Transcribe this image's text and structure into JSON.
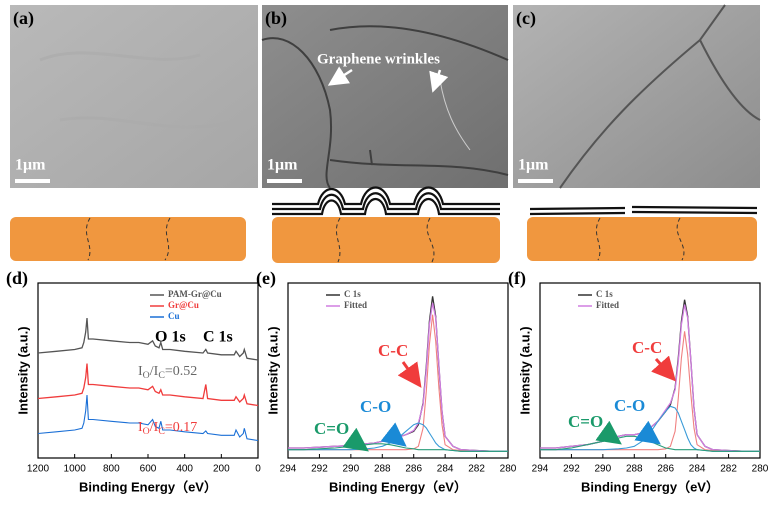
{
  "images": [
    {
      "panel": "(a)",
      "scale_bar": "1μm"
    },
    {
      "panel": "(b)",
      "scale_bar": "1μm",
      "annotation": "Graphene wrinkles"
    },
    {
      "panel": "(c)",
      "scale_bar": "1μm"
    }
  ],
  "chart_data": [
    {
      "type": "line",
      "panel": "(d)",
      "xlabel": "Binding Energy（eV）",
      "ylabel": "Intensity (a.u.)",
      "x": [
        1200,
        1100,
        1000,
        960,
        950,
        940,
        933,
        925,
        900,
        800,
        700,
        650,
        600,
        575,
        560,
        540,
        530,
        520,
        480,
        400,
        300,
        285,
        275,
        200,
        130,
        120,
        100,
        80,
        75,
        60,
        0
      ],
      "xlim": [
        1200,
        0
      ],
      "xticks": [
        1200,
        1000,
        800,
        600,
        400,
        200,
        0
      ],
      "ylim": [
        0,
        1
      ],
      "series": [
        {
          "name": "PAM-Gr@Cu",
          "color": "#555555",
          "values": [
            0.6,
            0.61,
            0.62,
            0.63,
            0.66,
            0.72,
            0.8,
            0.68,
            0.68,
            0.67,
            0.66,
            0.66,
            0.65,
            0.67,
            0.64,
            0.63,
            0.66,
            0.62,
            0.62,
            0.61,
            0.6,
            0.62,
            0.6,
            0.59,
            0.59,
            0.61,
            0.58,
            0.6,
            0.62,
            0.57,
            0.56
          ]
        },
        {
          "name": "Gr@Cu",
          "color": "#f03c3c",
          "values": [
            0.34,
            0.35,
            0.36,
            0.37,
            0.4,
            0.46,
            0.54,
            0.42,
            0.42,
            0.41,
            0.4,
            0.4,
            0.39,
            0.41,
            0.38,
            0.37,
            0.39,
            0.36,
            0.36,
            0.35,
            0.34,
            0.42,
            0.34,
            0.33,
            0.33,
            0.35,
            0.32,
            0.34,
            0.36,
            0.31,
            0.3
          ]
        },
        {
          "name": "Cu",
          "color": "#1a6fd6",
          "values": [
            0.14,
            0.15,
            0.16,
            0.17,
            0.2,
            0.27,
            0.36,
            0.22,
            0.22,
            0.21,
            0.2,
            0.2,
            0.19,
            0.22,
            0.18,
            0.17,
            0.21,
            0.16,
            0.16,
            0.15,
            0.14,
            0.155,
            0.14,
            0.13,
            0.13,
            0.16,
            0.12,
            0.14,
            0.17,
            0.11,
            0.1
          ]
        }
      ],
      "annotations": [
        {
          "text": "O 1s",
          "color": "#000000"
        },
        {
          "text": "C 1s",
          "color": "#000000"
        },
        {
          "parts": [
            "I",
            "O",
            "/I",
            "C",
            "=0.52"
          ],
          "color": "#666666"
        },
        {
          "parts": [
            "I",
            "O",
            "/I",
            "C",
            "=0.17"
          ],
          "color": "#f03c3c"
        }
      ]
    },
    {
      "type": "line",
      "panel": "(e)",
      "xlabel": "Binding Energy（eV）",
      "ylabel": "Intensity (a.u.)",
      "x": [
        294,
        293,
        292,
        291,
        290,
        289,
        288.5,
        288,
        287.5,
        287,
        286.5,
        286,
        285.7,
        285.4,
        285.2,
        285,
        284.8,
        284.6,
        284.4,
        284.2,
        284,
        283.5,
        283,
        282,
        281,
        280
      ],
      "xlim": [
        294,
        280
      ],
      "xticks": [
        294,
        292,
        290,
        288,
        286,
        284,
        282,
        280
      ],
      "ylim": [
        0,
        1.05
      ],
      "series": [
        {
          "name": "C 1s",
          "color": "#333333",
          "values": [
            0.06,
            0.06,
            0.065,
            0.07,
            0.075,
            0.085,
            0.09,
            0.1,
            0.11,
            0.125,
            0.14,
            0.16,
            0.2,
            0.33,
            0.55,
            0.82,
            0.97,
            0.85,
            0.55,
            0.28,
            0.13,
            0.07,
            0.05,
            0.045,
            0.04,
            0.04
          ]
        },
        {
          "name": "Fitted",
          "color": "#d07de0",
          "values": [
            0.06,
            0.06,
            0.065,
            0.07,
            0.075,
            0.085,
            0.09,
            0.1,
            0.11,
            0.125,
            0.14,
            0.165,
            0.21,
            0.32,
            0.53,
            0.8,
            0.93,
            0.84,
            0.56,
            0.28,
            0.13,
            0.07,
            0.05,
            0.045,
            0.04,
            0.04
          ]
        },
        {
          "color": "#f08080",
          "values": [
            0.05,
            0.05,
            0.05,
            0.05,
            0.05,
            0.05,
            0.05,
            0.05,
            0.05,
            0.05,
            0.05,
            0.055,
            0.07,
            0.18,
            0.4,
            0.68,
            0.86,
            0.7,
            0.42,
            0.2,
            0.08,
            0.05,
            0.045,
            0.04,
            0.04,
            0.04
          ]
        },
        {
          "color": "#3a9bd8",
          "values": [
            0.05,
            0.05,
            0.05,
            0.05,
            0.05,
            0.055,
            0.06,
            0.07,
            0.09,
            0.12,
            0.16,
            0.2,
            0.21,
            0.2,
            0.18,
            0.15,
            0.12,
            0.09,
            0.07,
            0.06,
            0.05,
            0.045,
            0.04,
            0.04,
            0.04,
            0.04
          ]
        },
        {
          "color": "#2a9d7a",
          "values": [
            0.05,
            0.05,
            0.055,
            0.06,
            0.07,
            0.08,
            0.085,
            0.085,
            0.08,
            0.07,
            0.06,
            0.055,
            0.05,
            0.05,
            0.05,
            0.05,
            0.05,
            0.05,
            0.05,
            0.05,
            0.05,
            0.045,
            0.04,
            0.04,
            0.04,
            0.04
          ]
        }
      ],
      "annotations": [
        {
          "text": "C-C",
          "color": "#f03c3c"
        },
        {
          "text": "C-O",
          "color": "#1a8ad6"
        },
        {
          "text": "C=O",
          "color": "#1a9a6a"
        }
      ]
    },
    {
      "type": "line",
      "panel": "(f)",
      "xlabel": "Binding Energy（eV）",
      "ylabel": "Intensity (a.u.)",
      "x": [
        294,
        293,
        292,
        291,
        290,
        289,
        288.5,
        288,
        287.5,
        287,
        286.5,
        286,
        285.7,
        285.4,
        285.2,
        285,
        284.8,
        284.6,
        284.4,
        284.2,
        284,
        283.5,
        283,
        282,
        281,
        280
      ],
      "xlim": [
        294,
        280
      ],
      "xticks": [
        294,
        292,
        290,
        288,
        286,
        284,
        282,
        280
      ],
      "ylim": [
        0,
        1.05
      ],
      "series": [
        {
          "name": "C 1s",
          "color": "#333333",
          "values": [
            0.06,
            0.06,
            0.07,
            0.08,
            0.1,
            0.13,
            0.14,
            0.14,
            0.15,
            0.18,
            0.22,
            0.28,
            0.32,
            0.42,
            0.6,
            0.82,
            0.95,
            0.85,
            0.58,
            0.3,
            0.14,
            0.07,
            0.05,
            0.045,
            0.04,
            0.04
          ]
        },
        {
          "name": "Fitted",
          "color": "#d07de0",
          "values": [
            0.06,
            0.06,
            0.07,
            0.08,
            0.1,
            0.13,
            0.14,
            0.14,
            0.15,
            0.18,
            0.22,
            0.29,
            0.33,
            0.41,
            0.58,
            0.8,
            0.92,
            0.84,
            0.58,
            0.3,
            0.14,
            0.07,
            0.05,
            0.045,
            0.04,
            0.04
          ]
        },
        {
          "color": "#f08080",
          "values": [
            0.05,
            0.05,
            0.05,
            0.05,
            0.05,
            0.05,
            0.05,
            0.05,
            0.05,
            0.05,
            0.05,
            0.055,
            0.07,
            0.16,
            0.36,
            0.6,
            0.76,
            0.62,
            0.38,
            0.18,
            0.08,
            0.05,
            0.045,
            0.04,
            0.04,
            0.04
          ]
        },
        {
          "color": "#3a9bd8",
          "values": [
            0.05,
            0.05,
            0.05,
            0.05,
            0.05,
            0.055,
            0.06,
            0.07,
            0.1,
            0.15,
            0.22,
            0.28,
            0.31,
            0.3,
            0.27,
            0.22,
            0.17,
            0.12,
            0.08,
            0.06,
            0.05,
            0.045,
            0.04,
            0.04,
            0.04,
            0.04
          ]
        },
        {
          "color": "#2a9d7a",
          "values": [
            0.05,
            0.05,
            0.06,
            0.08,
            0.1,
            0.12,
            0.13,
            0.13,
            0.12,
            0.1,
            0.08,
            0.06,
            0.055,
            0.05,
            0.05,
            0.05,
            0.05,
            0.05,
            0.05,
            0.05,
            0.05,
            0.045,
            0.04,
            0.04,
            0.04,
            0.04
          ]
        }
      ],
      "annotations": [
        {
          "text": "C-C",
          "color": "#f03c3c"
        },
        {
          "text": "C-O",
          "color": "#1a8ad6"
        },
        {
          "text": "C=O",
          "color": "#1a9a6a"
        }
      ]
    }
  ]
}
